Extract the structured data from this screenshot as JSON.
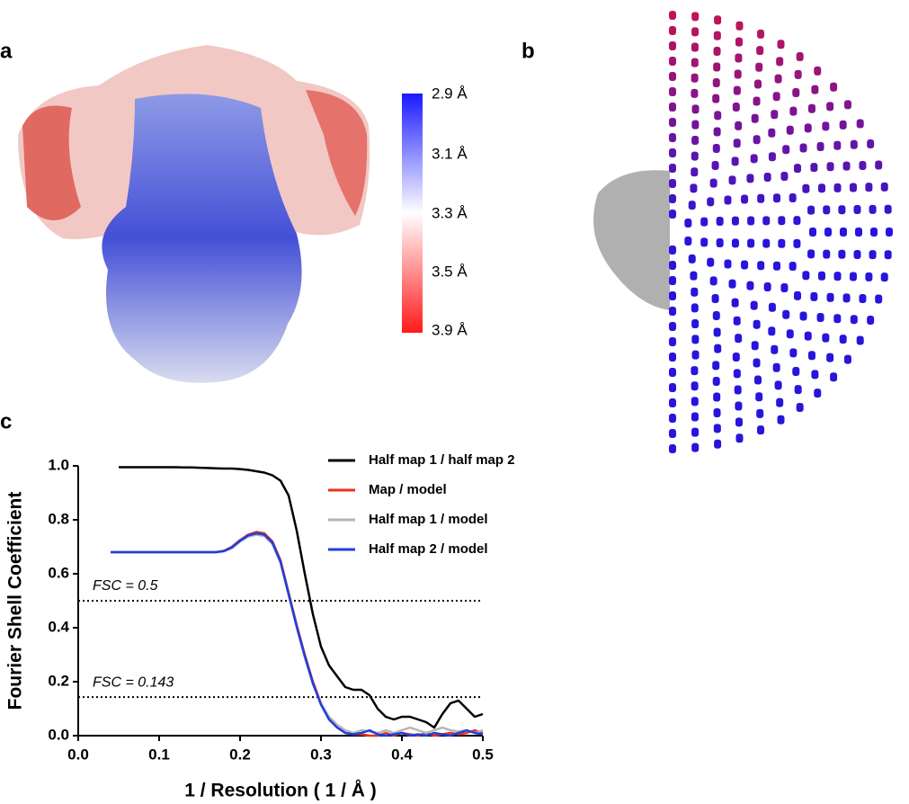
{
  "panel_labels": [
    "a",
    "b",
    "c"
  ],
  "colorbar": {
    "labels": [
      "2.9 Å",
      "3.1 Å",
      "3.3 Å",
      "3.5 Å",
      "3.9 Å"
    ]
  },
  "chart_data": {
    "type": "line",
    "xlabel": "1 / Resolution ( 1 / Å )",
    "ylabel": "Fourier Shell Coefficient",
    "x": [
      0.04,
      0.05,
      0.06,
      0.07,
      0.08,
      0.09,
      0.1,
      0.11,
      0.12,
      0.13,
      0.14,
      0.15,
      0.16,
      0.17,
      0.18,
      0.19,
      0.2,
      0.21,
      0.22,
      0.23,
      0.24,
      0.25,
      0.26,
      0.27,
      0.28,
      0.29,
      0.3,
      0.31,
      0.32,
      0.33,
      0.34,
      0.35,
      0.36,
      0.37,
      0.38,
      0.39,
      0.4,
      0.41,
      0.42,
      0.43,
      0.44,
      0.45,
      0.46,
      0.47,
      0.48,
      0.49,
      0.5
    ],
    "series": [
      {
        "name": "Half map 1 / half map 2",
        "color": "#000000",
        "values": [
          null,
          0.995,
          0.995,
          0.995,
          0.995,
          0.995,
          0.995,
          0.995,
          0.995,
          0.994,
          0.994,
          0.993,
          0.992,
          0.991,
          0.99,
          0.99,
          0.988,
          0.985,
          0.98,
          0.975,
          0.965,
          0.945,
          0.89,
          0.76,
          0.6,
          0.45,
          0.33,
          0.26,
          0.22,
          0.18,
          0.17,
          0.17,
          0.15,
          0.1,
          0.07,
          0.06,
          0.07,
          0.07,
          0.06,
          0.05,
          0.03,
          0.08,
          0.12,
          0.13,
          0.1,
          0.07,
          0.08
        ]
      },
      {
        "name": "Map / model",
        "color": "#e8321e",
        "values": [
          0.68,
          0.68,
          0.68,
          0.68,
          0.68,
          0.68,
          0.68,
          0.68,
          0.68,
          0.68,
          0.68,
          0.68,
          0.68,
          0.68,
          0.685,
          0.7,
          0.725,
          0.745,
          0.755,
          0.75,
          0.72,
          0.65,
          0.53,
          0.41,
          0.3,
          0.2,
          0.12,
          0.06,
          0.03,
          0.01,
          0.005,
          0.005,
          0,
          0,
          0.01,
          0,
          0.01,
          0.005,
          0,
          0.01,
          0,
          0.005,
          0.01,
          0.005,
          0.01,
          0.02,
          0.01
        ]
      },
      {
        "name": "Half map 1 / model",
        "color": "#b4b4b4",
        "values": [
          0.68,
          0.68,
          0.68,
          0.68,
          0.68,
          0.68,
          0.68,
          0.68,
          0.68,
          0.68,
          0.68,
          0.68,
          0.68,
          0.68,
          0.683,
          0.695,
          0.72,
          0.738,
          0.745,
          0.74,
          0.71,
          0.64,
          0.52,
          0.4,
          0.29,
          0.19,
          0.12,
          0.07,
          0.04,
          0.02,
          0.01,
          0.02,
          0.015,
          0.01,
          0.02,
          0.01,
          0.02,
          0.03,
          0.02,
          0.01,
          0.02,
          0.03,
          0.02,
          0.015,
          0.02,
          0.01,
          0.02
        ]
      },
      {
        "name": "Half map 2 / model",
        "color": "#1d3fe0",
        "values": [
          0.68,
          0.68,
          0.68,
          0.68,
          0.68,
          0.68,
          0.68,
          0.68,
          0.68,
          0.68,
          0.68,
          0.68,
          0.68,
          0.68,
          0.684,
          0.698,
          0.722,
          0.742,
          0.75,
          0.745,
          0.715,
          0.645,
          0.525,
          0.405,
          0.295,
          0.195,
          0.115,
          0.06,
          0.03,
          0.01,
          0.005,
          0.01,
          0.02,
          0.005,
          0,
          0.005,
          0.01,
          0,
          0.005,
          0,
          0.01,
          0.005,
          0,
          0.01,
          0.02,
          0.01,
          0.005
        ]
      }
    ],
    "thresholds": [
      {
        "value": 0.5,
        "label": "FSC = 0.5"
      },
      {
        "value": 0.143,
        "label": "FSC = 0.143"
      }
    ],
    "xlim": [
      0,
      0.5
    ],
    "xticks": [
      {
        "value": 0,
        "label": "0.0"
      },
      0.1,
      0.2,
      0.3,
      0.4,
      0.5
    ],
    "ylim": [
      0,
      1
    ],
    "yticks": [
      {
        "value": 0,
        "label": "0.0"
      },
      0.2,
      0.4,
      0.6,
      0.8,
      {
        "value": 1,
        "label": "1.0"
      }
    ],
    "legend": "top-right"
  }
}
